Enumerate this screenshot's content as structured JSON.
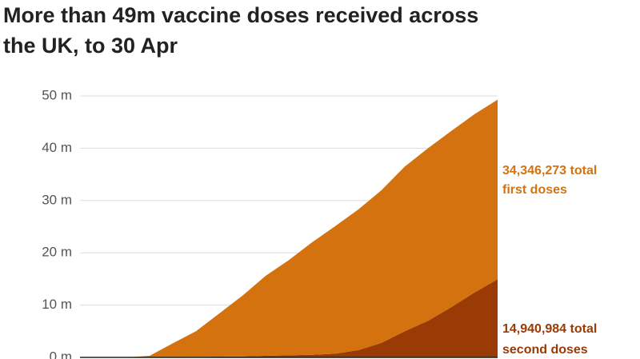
{
  "chart_data": {
    "type": "stacked_area",
    "title": [
      "More than 49m vaccine doses received across",
      "the UK, to 30 Apr"
    ],
    "categories": [
      null,
      null,
      null,
      null,
      null,
      null,
      null,
      null,
      null,
      null,
      null,
      null,
      null,
      null,
      null,
      null,
      null,
      null,
      null
    ],
    "series": [
      {
        "color": "#9a3a04",
        "values": [
          0,
          0,
          0,
          0,
          0.05,
          0.1,
          0.15,
          0.2,
          0.3,
          0.4,
          0.5,
          0.7,
          1.4,
          2.8,
          5.0,
          7.0,
          9.6,
          12.4,
          14.940984
        ]
      },
      {
        "color": "#d3720f",
        "values": [
          0,
          0,
          0,
          0.3,
          2.65,
          4.9,
          8.25,
          11.6,
          15.3,
          18.2,
          21.5,
          24.4,
          26.9,
          29.2,
          31.5,
          33,
          33.7,
          34.1,
          34.346273
        ]
      }
    ],
    "annotations": [
      {
        "lines": [
          "34,346,273 total",
          "first doses"
        ],
        "color": "#d3720f"
      },
      {
        "lines": [
          "14,940,984 total",
          "second doses"
        ],
        "color": "#9a3a04"
      }
    ],
    "ylim": [
      0,
      50
    ],
    "yticks": [
      {
        "value": 0,
        "label": "0 m"
      },
      {
        "value": 10,
        "label": "10 m"
      },
      {
        "value": 20,
        "label": "20 m"
      },
      {
        "value": 30,
        "label": "30 m"
      },
      {
        "value": 40,
        "label": "40 m"
      },
      {
        "value": 50,
        "label": "50 m"
      }
    ],
    "grid": true
  }
}
